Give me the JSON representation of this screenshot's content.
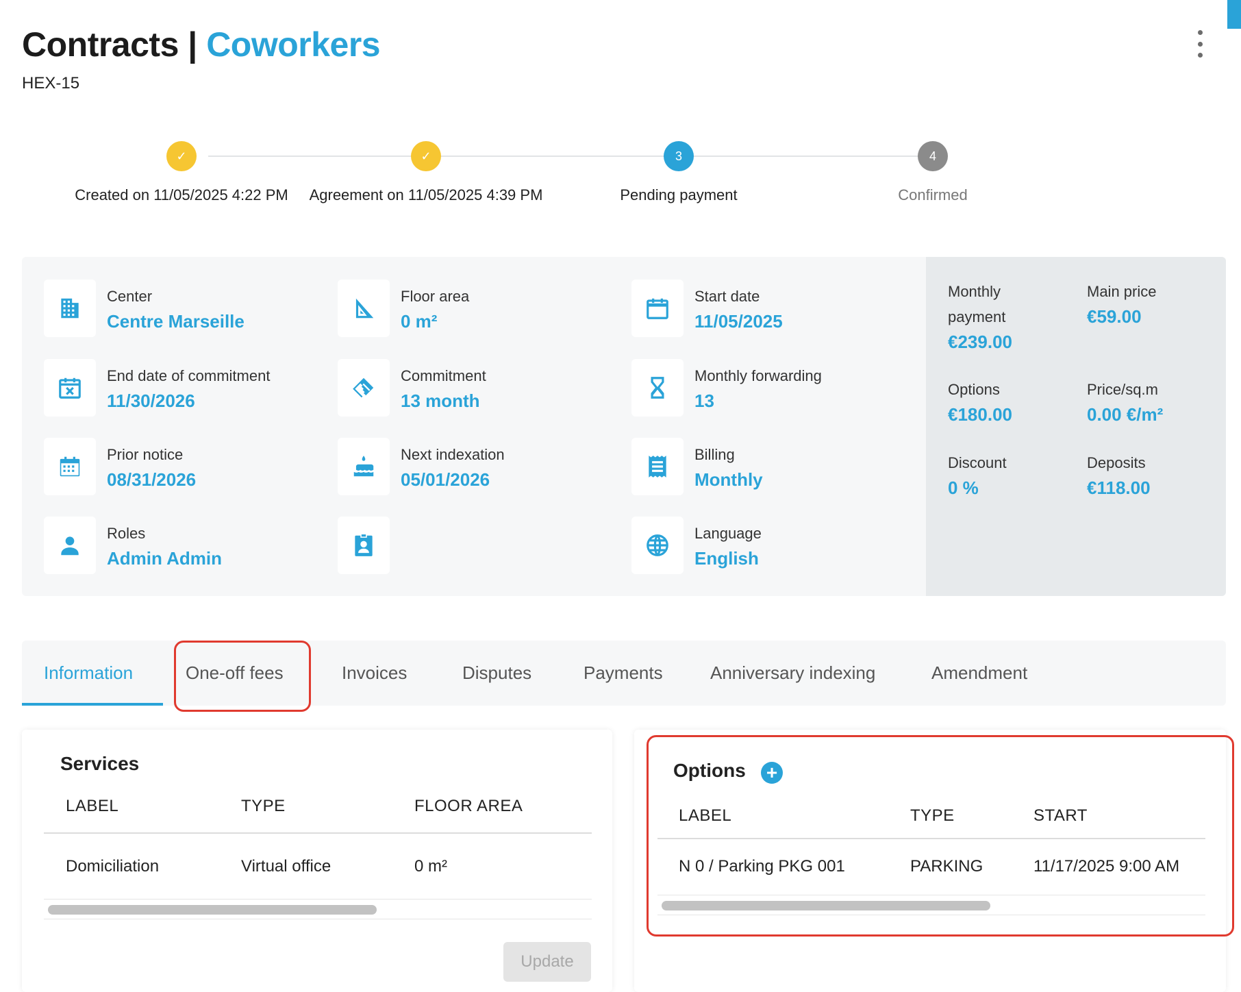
{
  "header": {
    "title_main": "Contracts",
    "title_sep": "|",
    "title_accent": "Coworkers",
    "reference": "HEX-15"
  },
  "stepper": {
    "steps": [
      {
        "label": "Created on 11/05/2025 4:22 PM",
        "marker": "✓",
        "state": "done"
      },
      {
        "label": "Agreement on 11/05/2025 4:39 PM",
        "marker": "✓",
        "state": "done"
      },
      {
        "label": "Pending payment",
        "marker": "3",
        "state": "active"
      },
      {
        "label": "Confirmed",
        "marker": "4",
        "state": "pending"
      }
    ]
  },
  "info": {
    "center": {
      "label": "Center",
      "value": "Centre Marseille",
      "icon": "building-icon"
    },
    "floor_area": {
      "label": "Floor area",
      "value": "0 m²",
      "icon": "set-square-icon"
    },
    "start_date": {
      "label": "Start date",
      "value": "11/05/2025",
      "icon": "calendar-icon"
    },
    "end_commitment": {
      "label": "End date of commitment",
      "value": "11/30/2026",
      "icon": "calendar-x-icon"
    },
    "commitment": {
      "label": "Commitment",
      "value": "13 month",
      "icon": "handshake-icon"
    },
    "monthly_forwarding": {
      "label": "Monthly forwarding",
      "value": "13",
      "icon": "hourglass-icon"
    },
    "prior_notice": {
      "label": "Prior notice",
      "value": "08/31/2026",
      "icon": "calendar-grid-icon"
    },
    "next_indexation": {
      "label": "Next indexation",
      "value": "05/01/2026",
      "icon": "cake-icon"
    },
    "billing": {
      "label": "Billing",
      "value": "Monthly",
      "icon": "receipt-icon"
    },
    "roles": {
      "label": "Roles",
      "value": "Admin Admin",
      "icon": "person-icon"
    },
    "badge": {
      "icon": "contact-badge-icon"
    },
    "language": {
      "label": "Language",
      "value": "English",
      "icon": "globe-icon"
    }
  },
  "pricing": {
    "monthly_payment": {
      "label": "Monthly payment",
      "value": "€239.00"
    },
    "main_price": {
      "label": "Main price",
      "value": "€59.00"
    },
    "options": {
      "label": "Options",
      "value": "€180.00"
    },
    "price_sqm": {
      "label": "Price/sq.m",
      "value": "0.00 €/m²"
    },
    "discount": {
      "label": "Discount",
      "value": "0 %"
    },
    "deposits": {
      "label": "Deposits",
      "value": "€118.00"
    }
  },
  "tabs": [
    {
      "label": "Information",
      "active": true
    },
    {
      "label": "One-off fees",
      "active": false
    },
    {
      "label": "Invoices",
      "active": false
    },
    {
      "label": "Disputes",
      "active": false
    },
    {
      "label": "Payments",
      "active": false
    },
    {
      "label": "Anniversary indexing",
      "active": false
    },
    {
      "label": "Amendment",
      "active": false
    }
  ],
  "services": {
    "title": "Services",
    "columns": [
      "LABEL",
      "TYPE",
      "FLOOR AREA"
    ],
    "rows": [
      [
        "Domiciliation",
        "Virtual office",
        "0 m²"
      ]
    ],
    "scroll_fraction": 0.6,
    "update_label": "Update"
  },
  "options": {
    "title": "Options",
    "add_icon": "+",
    "columns": [
      "LABEL",
      "TYPE",
      "START"
    ],
    "rows": [
      [
        "N 0 / Parking PKG 001",
        "PARKING",
        "11/17/2025 9:00 AM"
      ]
    ],
    "scroll_fraction": 0.6
  },
  "colors": {
    "accent": "#2aa3d8",
    "done": "#f6c632",
    "pending": "#8b8b8b",
    "highlight": "#e03a2f"
  }
}
